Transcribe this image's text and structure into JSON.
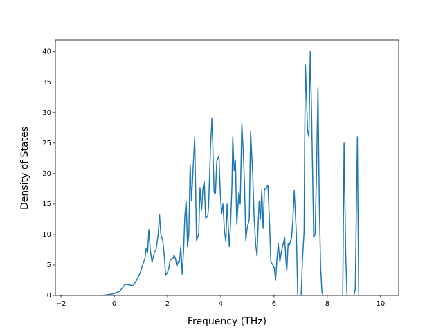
{
  "chart_data": {
    "type": "line",
    "x_label": "Frequency (THz)",
    "y_label": "Density of States",
    "xlim": [
      -2.21,
      10.68
    ],
    "ylim": [
      0,
      41.9
    ],
    "xticks": [
      {
        "value": -2,
        "label": "−2"
      },
      0,
      2,
      4,
      6,
      8,
      10
    ],
    "yticks": [
      0,
      5,
      10,
      15,
      20,
      25,
      30,
      35,
      40
    ],
    "grid": false,
    "series": [
      {
        "color": "#1f77b4",
        "x": [
          -1.55,
          -1.0,
          -0.5,
          -0.3,
          0,
          0.2,
          0.3,
          0.4,
          0.5,
          0.7,
          0.8,
          0.9,
          1.0,
          1.05,
          1.15,
          1.2,
          1.25,
          1.3,
          1.35,
          1.42,
          1.5,
          1.57,
          1.65,
          1.7,
          1.75,
          1.82,
          1.88,
          1.93,
          2.0,
          2.05,
          2.1,
          2.2,
          2.25,
          2.3,
          2.35,
          2.4,
          2.45,
          2.5,
          2.55,
          2.6,
          2.65,
          2.7,
          2.75,
          2.8,
          2.85,
          2.9,
          3.02,
          3.09,
          3.17,
          3.22,
          3.28,
          3.33,
          3.38,
          3.43,
          3.51,
          3.54,
          3.62,
          3.67,
          3.75,
          3.8,
          3.85,
          3.93,
          3.98,
          4.03,
          4.08,
          4.14,
          4.19,
          4.24,
          4.32,
          4.37,
          4.42,
          4.45,
          4.5,
          4.55,
          4.6,
          4.68,
          4.73,
          4.79,
          4.84,
          4.89,
          4.94,
          4.99,
          5.07,
          5.12,
          5.2,
          5.25,
          5.31,
          5.36,
          5.44,
          5.49,
          5.54,
          5.59,
          5.64,
          5.7,
          5.77,
          5.83,
          5.88,
          5.96,
          6.01,
          6.06,
          6.11,
          6.16,
          6.22,
          6.27,
          6.32,
          6.4,
          6.45,
          6.48,
          6.53,
          6.58,
          6.66,
          6.71,
          6.76,
          6.84,
          6.89,
          7.02,
          7.07,
          7.13,
          7.15,
          7.18,
          7.26,
          7.31,
          7.36,
          7.41,
          7.49,
          7.54,
          7.59,
          7.65,
          7.7,
          7.75,
          7.8,
          7.85,
          8.58,
          8.63,
          8.69,
          8.74,
          9.0,
          9.05,
          9.13,
          9.18,
          10.04
        ],
        "values": [
          0,
          0,
          0,
          0.1,
          0.3,
          0.7,
          1.2,
          1.8,
          1.8,
          1.6,
          2.2,
          3.0,
          4.0,
          4.8,
          6,
          7.8,
          7,
          10.8,
          7.5,
          5.4,
          7,
          7.5,
          10,
          13.3,
          10,
          9,
          6.5,
          3.3,
          3.8,
          4.5,
          5.8,
          6,
          6.6,
          6,
          4.8,
          5.5,
          5.5,
          8,
          3.5,
          7,
          13,
          15.5,
          8,
          10,
          21.5,
          15.5,
          26,
          9,
          10,
          17.6,
          14,
          17.5,
          18.7,
          12.7,
          13,
          14.5,
          25,
          29.1,
          16.9,
          16.7,
          22,
          22.9,
          17,
          13.3,
          15,
          10.5,
          8.8,
          15,
          8,
          12,
          18,
          26,
          20.5,
          22.1,
          11.7,
          17,
          15,
          28.2,
          24,
          18.5,
          9,
          11,
          12.5,
          26.9,
          20,
          13,
          8.5,
          6.5,
          15.5,
          12.5,
          17.3,
          11,
          17.5,
          17.5,
          18.1,
          12,
          5.5,
          5,
          4.5,
          2.5,
          6,
          8.5,
          5.5,
          7,
          8,
          9.5,
          5.5,
          4,
          8.5,
          8.3,
          9.5,
          12.5,
          17.2,
          10,
          0,
          0,
          6,
          10.5,
          25,
          37.8,
          27,
          26,
          40,
          30,
          9.5,
          10,
          19,
          34.1,
          15,
          4.5,
          0.5,
          0,
          0,
          25,
          7,
          0,
          0,
          1,
          26,
          0,
          0
        ]
      }
    ]
  }
}
